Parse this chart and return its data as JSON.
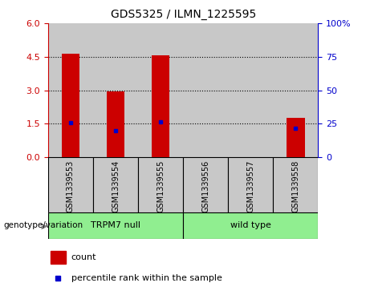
{
  "title": "GDS5325 / ILMN_1225595",
  "samples": [
    "GSM1339553",
    "GSM1339554",
    "GSM1339555",
    "GSM1339556",
    "GSM1339557",
    "GSM1339558"
  ],
  "counts": [
    4.65,
    2.95,
    4.55,
    0.0,
    0.0,
    1.75
  ],
  "percentile_ranks_left": [
    1.55,
    1.2,
    1.57,
    0.0,
    0.0,
    1.28
  ],
  "groups": [
    {
      "label": "TRPM7 null",
      "start": 0,
      "end": 3,
      "color": "#90EE90"
    },
    {
      "label": "wild type",
      "start": 3,
      "end": 6,
      "color": "#90EE90"
    }
  ],
  "group_label_prefix": "genotype/variation",
  "ylim_left": [
    0,
    6
  ],
  "ylim_right": [
    0,
    100
  ],
  "yticks_left": [
    0,
    1.5,
    3.0,
    4.5,
    6.0
  ],
  "yticks_right": [
    0,
    25,
    50,
    75,
    100
  ],
  "bar_color": "#CC0000",
  "dot_color": "#0000CC",
  "sample_bg_color": "#C8C8C8",
  "plot_bg_color": "#FFFFFF",
  "right_axis_color": "#0000CC",
  "left_axis_color": "#CC0000",
  "bar_width": 0.4,
  "legend_count_label": "count",
  "legend_pct_label": "percentile rank within the sample"
}
